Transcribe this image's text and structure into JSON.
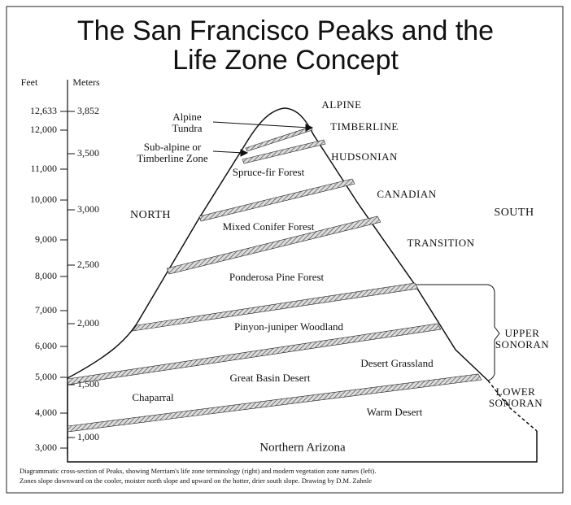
{
  "title": [
    "The San Francisco Peaks and the",
    "Life Zone Concept"
  ],
  "axis": {
    "feet_header": "Feet",
    "meters_header": "Meters",
    "feet_ticks": [
      "12,633",
      "12,000",
      "11,000",
      "10,000",
      "9,000",
      "8,000",
      "7,000",
      "6,000",
      "5,000",
      "4,000",
      "3,000"
    ],
    "meters_ticks": [
      "3,852",
      "3,500",
      "3,000",
      "2,500",
      "2,000",
      "1,500",
      "1,000"
    ]
  },
  "directions": {
    "north": "NORTH",
    "south": "SOUTH"
  },
  "life_zones": [
    [
      "ALPINE"
    ],
    [
      "TIMBERLINE"
    ],
    [
      "HUDSONIAN"
    ],
    [
      "CANADIAN"
    ],
    [
      "TRANSITION"
    ],
    [
      "UPPER",
      "SONORAN"
    ],
    [
      "LOWER",
      "SONORAN"
    ]
  ],
  "vegetation_zones": [
    [
      "Alpine",
      "Tundra"
    ],
    [
      "Sub-alpine or",
      "Timberline Zone"
    ],
    [
      "Spruce-fir Forest"
    ],
    [
      "Mixed Conifer Forest"
    ],
    [
      "Ponderosa Pine Forest"
    ],
    [
      "Pinyon-juniper Woodland"
    ],
    [
      "Desert Grassland"
    ],
    [
      "Great Basin Desert"
    ],
    [
      "Chaparral"
    ],
    [
      "Warm Desert"
    ]
  ],
  "base_label": "Northern Arizona",
  "caption": [
    "Diagrammatic cross-section of Peaks, showing Merriam's life zone terminology (right) and modern vegetation zone names (left).",
    "Zones slope downward on the cooler, moister north slope and upward on the hotter, drier south slope. Drawing by D.M. Zahnle"
  ]
}
